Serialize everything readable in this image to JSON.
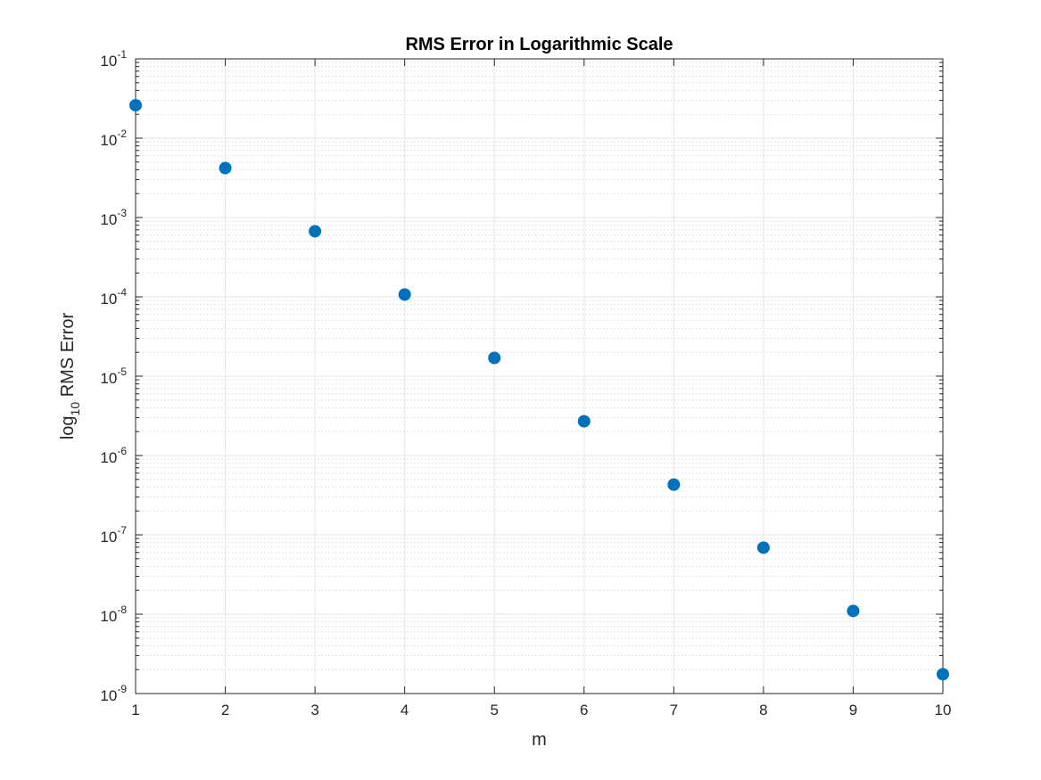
{
  "chart_data": {
    "type": "scatter",
    "title": "RMS Error in Logarithmic Scale",
    "xlabel": "m",
    "ylabel_parts": {
      "prefix": "log",
      "subscript": "10",
      "suffix": " RMS Error"
    },
    "xlim": [
      1,
      10
    ],
    "ylim": [
      1e-09,
      0.1
    ],
    "yscale": "log",
    "grid": true,
    "minor_grid": true,
    "x_ticks": [
      "1",
      "2",
      "3",
      "4",
      "5",
      "6",
      "7",
      "8",
      "9",
      "10"
    ],
    "y_ticks": [
      {
        "base": "10",
        "exp": "-9",
        "value": 1e-09
      },
      {
        "base": "10",
        "exp": "-8",
        "value": 1e-08
      },
      {
        "base": "10",
        "exp": "-7",
        "value": 1e-07
      },
      {
        "base": "10",
        "exp": "-6",
        "value": 1e-06
      },
      {
        "base": "10",
        "exp": "-5",
        "value": 1e-05
      },
      {
        "base": "10",
        "exp": "-4",
        "value": 0.0001
      },
      {
        "base": "10",
        "exp": "-3",
        "value": 0.001
      },
      {
        "base": "10",
        "exp": "-2",
        "value": 0.01
      },
      {
        "base": "10",
        "exp": "-1",
        "value": 0.1
      }
    ],
    "series": [
      {
        "x": [
          1,
          2,
          3,
          4,
          5,
          6,
          7,
          8,
          9,
          10
        ],
        "y": [
          0.026,
          0.0042,
          0.00067,
          0.000107,
          1.7e-05,
          2.7e-06,
          4.3e-07,
          6.9e-08,
          1.1e-08,
          1.75e-09
        ]
      }
    ],
    "colors": {
      "marker": "#0072BD",
      "axis": "#262626",
      "grid_major": "#e6e6e6",
      "grid_minor": "#d9d9d9"
    }
  }
}
